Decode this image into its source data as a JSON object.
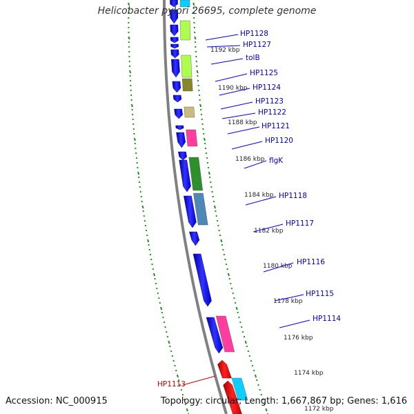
{
  "title": "Helicobacter pylori 26695, complete genome",
  "footer": {
    "accession": "Accession: NC_000915",
    "summary": "Topology: circular; Length: 1,667,867 bp; Genes: 1,616"
  },
  "colors": {
    "backbone": "#808080",
    "ticks": "#228b22",
    "label_line": "#0000ff",
    "label_text": "#0000cc",
    "highlight": "#cc0000"
  },
  "ruler": [
    {
      "kbp": 1192,
      "label": "1192 kbp"
    },
    {
      "kbp": 1190,
      "label": "1190 kbp"
    },
    {
      "kbp": 1188,
      "label": "1188 kbp"
    },
    {
      "kbp": 1186,
      "label": "1186 kbp"
    },
    {
      "kbp": 1184,
      "label": "1184 kbp"
    },
    {
      "kbp": 1182,
      "label": "1182 kbp"
    },
    {
      "kbp": 1180,
      "label": "1180 kbp"
    },
    {
      "kbp": 1178,
      "label": "1178 kbp"
    },
    {
      "kbp": 1176,
      "label": "1176 kbp"
    },
    {
      "kbp": 1174,
      "label": "1174 kbp"
    },
    {
      "kbp": 1172,
      "label": "1172 kbp"
    }
  ],
  "gene_labels": [
    {
      "label": "HP1128"
    },
    {
      "label": "HP1127"
    },
    {
      "label": "tolB"
    },
    {
      "label": "HP1125"
    },
    {
      "label": "HP1124"
    },
    {
      "label": "HP1123"
    },
    {
      "label": "HP1122"
    },
    {
      "label": "HP1121"
    },
    {
      "label": "HP1120"
    },
    {
      "label": "flgK"
    },
    {
      "label": "HP1118"
    },
    {
      "label": "HP1117"
    },
    {
      "label": "HP1116"
    },
    {
      "label": "HP1115"
    },
    {
      "label": "HP1114"
    },
    {
      "label": "HP1113",
      "highlighted": true
    }
  ],
  "cog_colors": [
    "#aaff44",
    "#808020",
    "#c8b878",
    "#ff3399",
    "#228b22",
    "#4682b4",
    "#ff3399",
    "#00ccff"
  ]
}
